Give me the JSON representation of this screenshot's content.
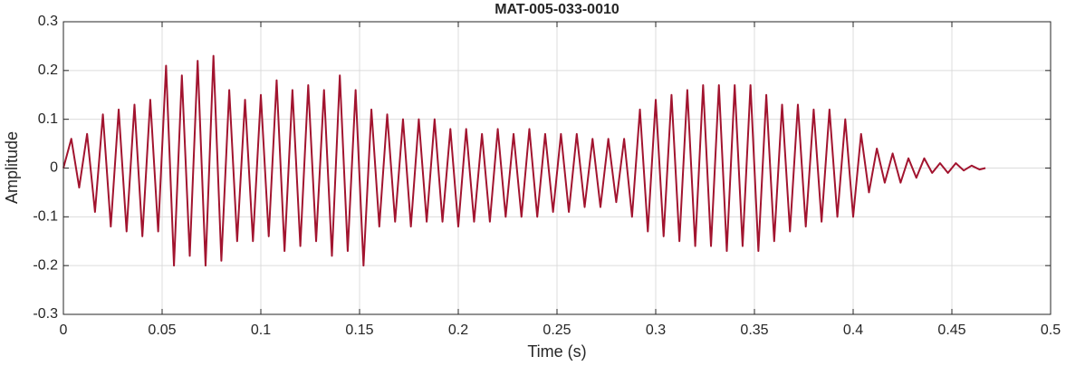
{
  "chart_data": {
    "type": "line",
    "title": "MAT-005-033-0010",
    "xlabel": "Time (s)",
    "ylabel": "Amplitude",
    "color": "#a2142f",
    "grid": true,
    "xlim": [
      0,
      0.5
    ],
    "ylim": [
      -0.3,
      0.3
    ],
    "xticks": [
      0,
      0.05,
      0.1,
      0.15,
      0.2,
      0.25,
      0.3,
      0.35,
      0.4,
      0.45,
      0.5
    ],
    "yticks": [
      -0.3,
      -0.2,
      -0.1,
      0,
      0.1,
      0.2,
      0.3
    ],
    "x": [
      0,
      0.004,
      0.008,
      0.012,
      0.016,
      0.02,
      0.024,
      0.028,
      0.032,
      0.036,
      0.04,
      0.044,
      0.048,
      0.052,
      0.056,
      0.06,
      0.064,
      0.068,
      0.072,
      0.076,
      0.08,
      0.084,
      0.088,
      0.092,
      0.096,
      0.1,
      0.104,
      0.108,
      0.112,
      0.116,
      0.12,
      0.124,
      0.128,
      0.132,
      0.136,
      0.14,
      0.144,
      0.148,
      0.152,
      0.156,
      0.16,
      0.164,
      0.168,
      0.172,
      0.176,
      0.18,
      0.184,
      0.188,
      0.192,
      0.196,
      0.2,
      0.204,
      0.208,
      0.212,
      0.216,
      0.22,
      0.224,
      0.228,
      0.232,
      0.236,
      0.24,
      0.244,
      0.248,
      0.252,
      0.256,
      0.26,
      0.264,
      0.268,
      0.272,
      0.276,
      0.28,
      0.284,
      0.288,
      0.292,
      0.296,
      0.3,
      0.304,
      0.308,
      0.312,
      0.316,
      0.32,
      0.324,
      0.328,
      0.332,
      0.336,
      0.34,
      0.344,
      0.348,
      0.352,
      0.356,
      0.36,
      0.364,
      0.368,
      0.372,
      0.376,
      0.38,
      0.384,
      0.388,
      0.392,
      0.396,
      0.4,
      0.404,
      0.408,
      0.412,
      0.416,
      0.42,
      0.424,
      0.428,
      0.432,
      0.436,
      0.44,
      0.444,
      0.448,
      0.452,
      0.456,
      0.46,
      0.464,
      0.467
    ],
    "values": [
      0,
      0.06,
      -0.04,
      0.07,
      -0.09,
      0.11,
      -0.12,
      0.12,
      -0.13,
      0.13,
      -0.14,
      0.14,
      -0.13,
      0.21,
      -0.2,
      0.19,
      -0.18,
      0.22,
      -0.2,
      0.23,
      -0.19,
      0.16,
      -0.15,
      0.14,
      -0.15,
      0.15,
      -0.14,
      0.18,
      -0.17,
      0.16,
      -0.16,
      0.17,
      -0.15,
      0.16,
      -0.18,
      0.19,
      -0.17,
      0.16,
      -0.2,
      0.12,
      -0.12,
      0.11,
      -0.11,
      0.1,
      -0.12,
      0.1,
      -0.11,
      0.1,
      -0.11,
      0.08,
      -0.12,
      0.08,
      -0.11,
      0.07,
      -0.11,
      0.08,
      -0.1,
      0.07,
      -0.1,
      0.08,
      -0.1,
      0.07,
      -0.09,
      0.07,
      -0.09,
      0.07,
      -0.08,
      0.06,
      -0.08,
      0.06,
      -0.07,
      0.06,
      -0.1,
      0.12,
      -0.13,
      0.14,
      -0.14,
      0.15,
      -0.15,
      0.16,
      -0.16,
      0.17,
      -0.16,
      0.17,
      -0.17,
      0.17,
      -0.16,
      0.17,
      -0.17,
      0.15,
      -0.15,
      0.13,
      -0.13,
      0.13,
      -0.12,
      0.12,
      -0.11,
      0.12,
      -0.1,
      0.1,
      -0.1,
      0.07,
      -0.05,
      0.04,
      -0.03,
      0.03,
      -0.03,
      0.02,
      -0.02,
      0.02,
      -0.01,
      0.01,
      -0.01,
      0.01,
      -0.005,
      0.005,
      -0.003,
      0
    ]
  }
}
